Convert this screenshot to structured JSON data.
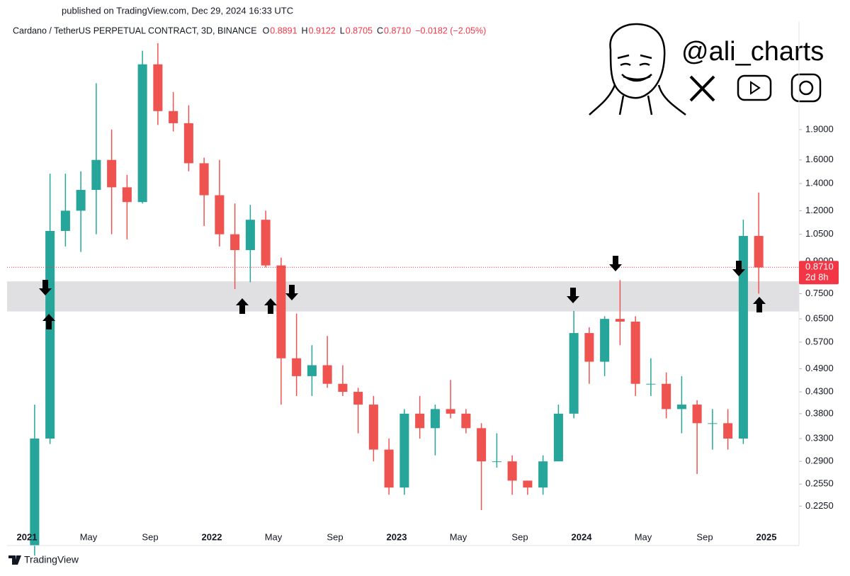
{
  "header": {
    "published": "published on TradingView.com, Dec 29, 2024 16:33 UTC",
    "symbol": "Cardano / TetherUS PERPETUAL CONTRACT, 3D, BINANCE",
    "ohlc": [
      {
        "key": "O",
        "value": "0.8891"
      },
      {
        "key": "H",
        "value": "0.9122"
      },
      {
        "key": "L",
        "value": "0.8705"
      },
      {
        "key": "C",
        "value": "0.8710"
      }
    ],
    "change": "−0.0182 (−2.05%)"
  },
  "branding": {
    "handle": "@ali_charts",
    "footer": "TradingView"
  },
  "chart_data": {
    "type": "candlestick",
    "log_scale": true,
    "up_color": "#26a69a",
    "down_color": "#ef5350",
    "categories": [
      "2021",
      null,
      null,
      null,
      "May",
      null,
      null,
      null,
      "Sep",
      null,
      null,
      null,
      "2022",
      null,
      null,
      null,
      "May",
      null,
      null,
      null,
      "Sep",
      null,
      null,
      null,
      "2023",
      null,
      null,
      null,
      "May",
      null,
      null,
      null,
      "Sep",
      null,
      null,
      null,
      "2024",
      null,
      null,
      null,
      "May",
      null,
      null,
      null,
      "Sep",
      null,
      null,
      null,
      "2025"
    ],
    "open": [
      0.18,
      0.33,
      1.07,
      1.2,
      1.35,
      1.6,
      1.37,
      1.26,
      2.75,
      2.11,
      1.97,
      1.57,
      1.31,
      1.05,
      0.96,
      1.14,
      0.88,
      0.52,
      0.47,
      0.5,
      0.45,
      0.43,
      0.4,
      0.31,
      0.25,
      0.38,
      0.35,
      0.39,
      0.38,
      0.35,
      0.29,
      0.29,
      0.26,
      0.25,
      0.29,
      0.38,
      0.6,
      0.51,
      0.65,
      0.64,
      0.45,
      0.45,
      0.39,
      0.4,
      0.36,
      0.36,
      0.33,
      1.04,
      null
    ],
    "high": [
      0.4,
      1.48,
      1.48,
      1.5,
      2.47,
      1.9,
      1.47,
      2.97,
      3.1,
      2.35,
      2.18,
      1.62,
      1.6,
      1.25,
      1.24,
      1.2,
      0.92,
      0.67,
      0.56,
      0.59,
      0.5,
      0.44,
      0.42,
      0.33,
      0.39,
      0.42,
      0.4,
      0.46,
      0.39,
      0.36,
      0.34,
      0.3,
      0.26,
      0.3,
      0.4,
      0.68,
      0.62,
      0.66,
      0.81,
      0.66,
      0.52,
      0.48,
      0.47,
      0.41,
      0.39,
      0.39,
      1.14,
      1.33,
      null
    ],
    "low": [
      0.17,
      0.32,
      0.98,
      0.95,
      1.05,
      1.05,
      1.02,
      1.25,
      1.95,
      1.88,
      1.5,
      1.1,
      0.98,
      0.77,
      0.8,
      0.87,
      0.4,
      0.42,
      0.42,
      0.44,
      0.42,
      0.34,
      0.29,
      0.24,
      0.24,
      0.33,
      0.3,
      0.37,
      0.34,
      0.22,
      0.28,
      0.24,
      0.24,
      0.24,
      0.29,
      0.37,
      0.45,
      0.47,
      0.56,
      0.42,
      0.42,
      0.37,
      0.34,
      0.27,
      0.31,
      0.31,
      0.32,
      0.75,
      null
    ],
    "close": [
      0.33,
      1.07,
      1.2,
      1.35,
      1.6,
      1.37,
      1.26,
      2.75,
      2.11,
      1.97,
      1.57,
      1.31,
      1.05,
      0.96,
      1.14,
      0.88,
      0.52,
      0.47,
      0.5,
      0.45,
      0.43,
      0.4,
      0.31,
      0.25,
      0.38,
      0.35,
      0.39,
      0.38,
      0.35,
      0.29,
      0.29,
      0.26,
      0.25,
      0.29,
      0.38,
      0.6,
      0.51,
      0.65,
      0.64,
      0.45,
      0.45,
      0.39,
      0.4,
      0.36,
      0.36,
      0.33,
      1.04,
      0.87,
      null
    ],
    "ylim": [
      0.18,
      3.51
    ],
    "yticks": [
      {
        "value": 1.9,
        "label": "1.9000"
      },
      {
        "value": 1.6,
        "label": "1.6000"
      },
      {
        "value": 1.4,
        "label": "1.4000"
      },
      {
        "value": 1.2,
        "label": "1.2000"
      },
      {
        "value": 1.05,
        "label": "1.0500"
      },
      {
        "value": 0.9,
        "label": "0.9000"
      },
      {
        "value": 0.75,
        "label": "0.7500"
      },
      {
        "value": 0.65,
        "label": "0.6500"
      },
      {
        "value": 0.57,
        "label": "0.5700"
      },
      {
        "value": 0.49,
        "label": "0.4900"
      },
      {
        "value": 0.43,
        "label": "0.4300"
      },
      {
        "value": 0.38,
        "label": "0.3800"
      },
      {
        "value": 0.33,
        "label": "0.3300"
      },
      {
        "value": 0.29,
        "label": "0.2900"
      },
      {
        "value": 0.255,
        "label": "0.2550"
      },
      {
        "value": 0.225,
        "label": "0.2250"
      }
    ],
    "support_zone": [
      0.678,
      0.804
    ],
    "zone_color": "#e0e0e3",
    "last_price": {
      "value": 0.871,
      "label": "0.8710"
    },
    "countdown": "2d 8h",
    "last_color": "#f23645"
  }
}
